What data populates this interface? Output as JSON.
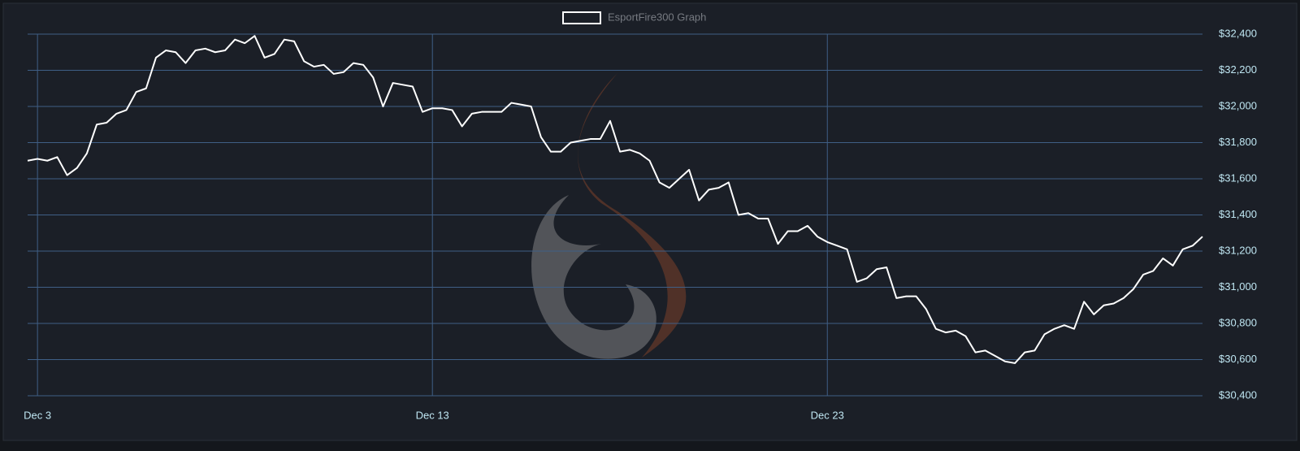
{
  "chart_data": {
    "type": "line",
    "categories": [
      null,
      "Dec 3",
      null,
      null,
      null,
      null,
      null,
      null,
      null,
      null,
      null,
      null,
      null,
      null,
      null,
      null,
      null,
      null,
      null,
      null,
      null,
      null,
      null,
      null,
      null,
      null,
      null,
      null,
      null,
      null,
      null,
      null,
      null,
      null,
      null,
      null,
      null,
      null,
      null,
      null,
      null,
      "Dec 13",
      null,
      null,
      null,
      null,
      null,
      null,
      null,
      null,
      null,
      null,
      null,
      null,
      null,
      null,
      null,
      null,
      null,
      null,
      null,
      null,
      null,
      null,
      null,
      null,
      null,
      null,
      null,
      null,
      null,
      null,
      null,
      null,
      null,
      null,
      null,
      null,
      null,
      null,
      null,
      "Dec 23",
      null,
      null,
      null,
      null,
      null,
      null,
      null,
      null,
      null,
      null,
      null,
      null,
      null,
      null,
      null,
      null,
      null,
      null,
      null,
      null,
      null,
      null,
      null,
      null,
      null,
      null,
      null,
      null,
      null,
      null,
      null,
      null,
      null,
      null,
      null,
      null,
      null,
      null
    ],
    "series": [
      {
        "name": "EsportFire300 Graph",
        "color": "#ffffff",
        "values": [
          31700,
          31710,
          31700,
          31720,
          31620,
          31660,
          31740,
          31900,
          31910,
          31960,
          31980,
          32080,
          32100,
          32270,
          32310,
          32300,
          32240,
          32310,
          32320,
          32300,
          32310,
          32370,
          32350,
          32390,
          32270,
          32290,
          32370,
          32360,
          32250,
          32220,
          32230,
          32180,
          32190,
          32240,
          32230,
          32160,
          32000,
          32130,
          32120,
          32110,
          31970,
          31990,
          31990,
          31980,
          31890,
          31960,
          31970,
          31970,
          31970,
          32020,
          32010,
          32000,
          31830,
          31750,
          31750,
          31800,
          31810,
          31820,
          31820,
          31920,
          31750,
          31760,
          31740,
          31700,
          31580,
          31550,
          31600,
          31650,
          31480,
          31540,
          31550,
          31580,
          31400,
          31410,
          31380,
          31380,
          31240,
          31310,
          31310,
          31340,
          31280,
          31250,
          31230,
          31210,
          31030,
          31050,
          31100,
          31110,
          30940,
          30950,
          30950,
          30880,
          30770,
          30750,
          30760,
          30730,
          30640,
          30650,
          30620,
          30590,
          30580,
          30640,
          30650,
          30740,
          30770,
          30790,
          30770,
          30920,
          30850,
          30900,
          30910,
          30940,
          30990,
          31070,
          31090,
          31160,
          31120,
          31210,
          31230,
          31280
        ]
      }
    ],
    "ylim": [
      30400,
      32400
    ],
    "yticks": [
      {
        "value": 30400,
        "label": "$30,400"
      },
      {
        "value": 30600,
        "label": "$30,600"
      },
      {
        "value": 30800,
        "label": "$30,800"
      },
      {
        "value": 31000,
        "label": "$31,000"
      },
      {
        "value": 31200,
        "label": "$31,200"
      },
      {
        "value": 31400,
        "label": "$31,400"
      },
      {
        "value": 31600,
        "label": "$31,600"
      },
      {
        "value": 31800,
        "label": "$31,800"
      },
      {
        "value": 32000,
        "label": "$32,000"
      },
      {
        "value": 32200,
        "label": "$32,200"
      },
      {
        "value": 32400,
        "label": "$32,400"
      }
    ],
    "grid": true
  }
}
